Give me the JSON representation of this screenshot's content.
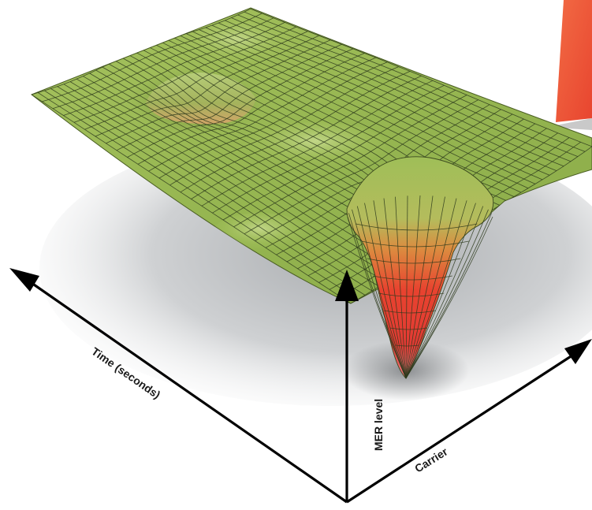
{
  "axes": {
    "time_label": "Time (seconds)",
    "mer_label": "MER level",
    "carrier_label": "Carrier"
  },
  "colors": {
    "surface_green": "#9cbb55",
    "surface_dark_green": "#6e8f34",
    "dip_red": "#e8352f",
    "dip_orange": "#d98a3c",
    "shadow": "#b7babd",
    "axis": "#000000",
    "corner_shape": "#ee5a3a"
  }
}
